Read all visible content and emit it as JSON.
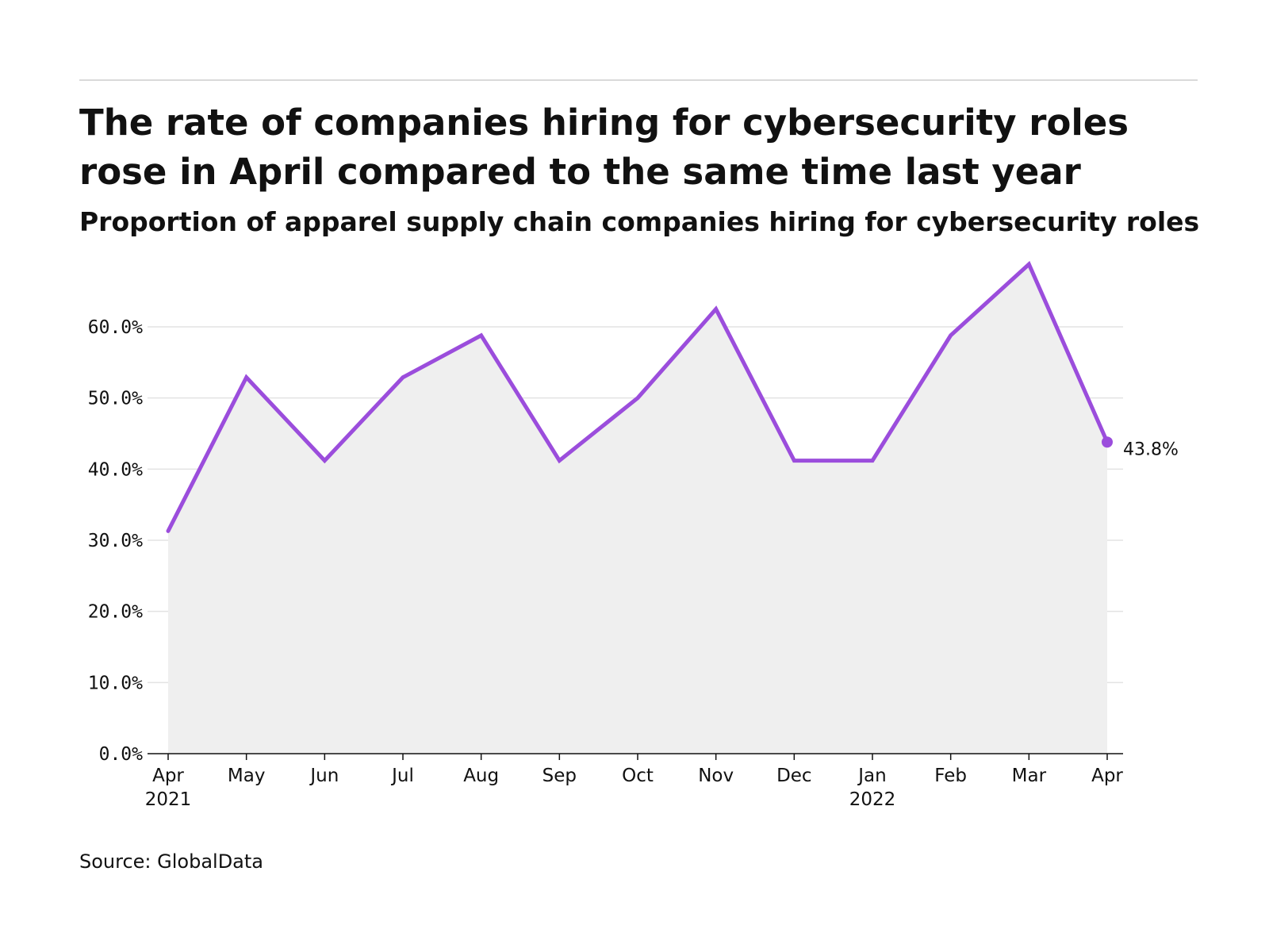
{
  "header": {
    "title": "The rate of companies hiring for cybersecurity roles rose in April compared to the same time last year",
    "subtitle": "Proportion of apparel supply chain companies hiring for cybersecurity roles"
  },
  "footer": {
    "source": "Source: GlobalData"
  },
  "colors": {
    "line": "#9b4ddc",
    "area": "#efefef",
    "grid": "#e3e3e3",
    "axis": "#111111"
  },
  "chart_data": {
    "type": "line",
    "title": "The rate of companies hiring for cybersecurity roles rose in April compared to the same time last year",
    "subtitle": "Proportion of apparel supply chain companies hiring for cybersecurity roles",
    "xlabel": "",
    "ylabel": "",
    "x": [
      "Apr 2021",
      "May 2021",
      "Jun 2021",
      "Jul 2021",
      "Aug 2021",
      "Sep 2021",
      "Oct 2021",
      "Nov 2021",
      "Dec 2021",
      "Jan 2022",
      "Feb 2022",
      "Mar 2022",
      "Apr 2022"
    ],
    "x_tick_labels": [
      {
        "month": "Apr",
        "year": "2021"
      },
      {
        "month": "May",
        "year": ""
      },
      {
        "month": "Jun",
        "year": ""
      },
      {
        "month": "Jul",
        "year": ""
      },
      {
        "month": "Aug",
        "year": ""
      },
      {
        "month": "Sep",
        "year": ""
      },
      {
        "month": "Oct",
        "year": ""
      },
      {
        "month": "Nov",
        "year": ""
      },
      {
        "month": "Dec",
        "year": ""
      },
      {
        "month": "Jan",
        "year": "2022"
      },
      {
        "month": "Feb",
        "year": ""
      },
      {
        "month": "Mar",
        "year": ""
      },
      {
        "month": "Apr",
        "year": ""
      }
    ],
    "series": [
      {
        "values": [
          31.3,
          52.9,
          41.2,
          52.9,
          58.8,
          41.2,
          50.0,
          62.5,
          41.2,
          41.2,
          58.8,
          68.8,
          43.8
        ]
      }
    ],
    "ylim": [
      0,
      70
    ],
    "y_ticks": [
      0,
      10,
      20,
      30,
      40,
      50,
      60
    ],
    "y_tick_labels": [
      "0.0%",
      "10.0%",
      "20.0%",
      "30.0%",
      "40.0%",
      "50.0%",
      "60.0%"
    ],
    "end_label": "43.8%",
    "grid": true,
    "area_fill": true,
    "legend": "none"
  }
}
